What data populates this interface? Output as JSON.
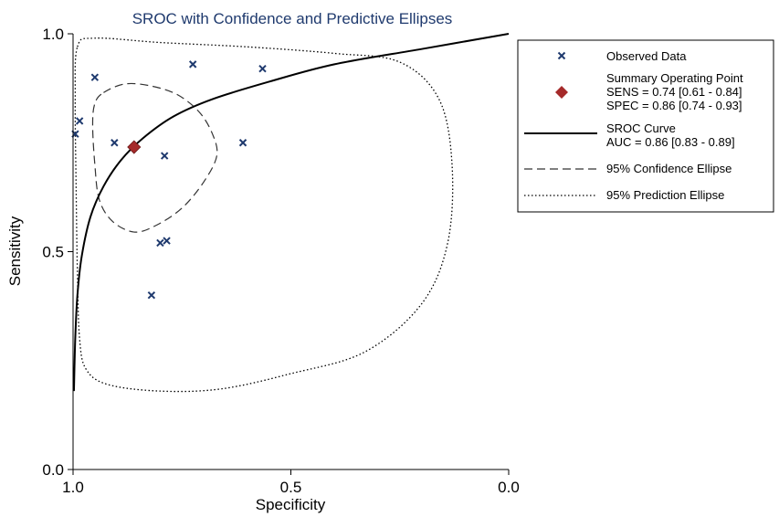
{
  "chart_data": {
    "type": "scatter",
    "title": "SROC with Confidence and Predictive Ellipses",
    "xlabel": "Specificity",
    "ylabel": "Sensitivity",
    "xlim": [
      1.0,
      0.0
    ],
    "ylim": [
      0.0,
      1.0
    ],
    "x_reversed": true,
    "x_ticks": [
      "1.0",
      "0.5",
      "0.0"
    ],
    "y_ticks": [
      "0.0",
      "0.5",
      "1.0"
    ],
    "grid": false,
    "legend_position": "right",
    "observed_data": [
      {
        "spec": 0.995,
        "sens": 0.77
      },
      {
        "spec": 0.985,
        "sens": 0.8
      },
      {
        "spec": 0.95,
        "sens": 0.9
      },
      {
        "spec": 0.725,
        "sens": 0.93
      },
      {
        "spec": 0.565,
        "sens": 0.92
      },
      {
        "spec": 0.905,
        "sens": 0.75
      },
      {
        "spec": 0.79,
        "sens": 0.72
      },
      {
        "spec": 0.61,
        "sens": 0.75
      },
      {
        "spec": 0.8,
        "sens": 0.52
      },
      {
        "spec": 0.785,
        "sens": 0.525
      },
      {
        "spec": 0.82,
        "sens": 0.4
      }
    ],
    "summary_point": {
      "spec": 0.86,
      "sens": 0.74
    },
    "sroc_curve": [
      {
        "spec": 0.998,
        "sens": 0.18
      },
      {
        "spec": 0.995,
        "sens": 0.3
      },
      {
        "spec": 0.99,
        "sens": 0.4
      },
      {
        "spec": 0.98,
        "sens": 0.49
      },
      {
        "spec": 0.96,
        "sens": 0.58
      },
      {
        "spec": 0.93,
        "sens": 0.65
      },
      {
        "spec": 0.89,
        "sens": 0.71
      },
      {
        "spec": 0.84,
        "sens": 0.76
      },
      {
        "spec": 0.77,
        "sens": 0.81
      },
      {
        "spec": 0.68,
        "sens": 0.85
      },
      {
        "spec": 0.55,
        "sens": 0.89
      },
      {
        "spec": 0.4,
        "sens": 0.93
      },
      {
        "spec": 0.2,
        "sens": 0.965
      },
      {
        "spec": 0.0,
        "sens": 1.0
      }
    ],
    "confidence_ellipse": [
      {
        "spec": 0.93,
        "sens": 0.865
      },
      {
        "spec": 0.88,
        "sens": 0.885
      },
      {
        "spec": 0.82,
        "sens": 0.88
      },
      {
        "spec": 0.76,
        "sens": 0.86
      },
      {
        "spec": 0.71,
        "sens": 0.82
      },
      {
        "spec": 0.68,
        "sens": 0.77
      },
      {
        "spec": 0.67,
        "sens": 0.72
      },
      {
        "spec": 0.7,
        "sens": 0.66
      },
      {
        "spec": 0.75,
        "sens": 0.6
      },
      {
        "spec": 0.81,
        "sens": 0.56
      },
      {
        "spec": 0.86,
        "sens": 0.545
      },
      {
        "spec": 0.91,
        "sens": 0.57
      },
      {
        "spec": 0.94,
        "sens": 0.62
      },
      {
        "spec": 0.95,
        "sens": 0.7
      },
      {
        "spec": 0.955,
        "sens": 0.79
      },
      {
        "spec": 0.95,
        "sens": 0.84
      }
    ],
    "prediction_ellipse": [
      {
        "spec": 0.99,
        "sens": 0.97
      },
      {
        "spec": 0.95,
        "sens": 0.99
      },
      {
        "spec": 0.8,
        "sens": 0.98
      },
      {
        "spec": 0.6,
        "sens": 0.97
      },
      {
        "spec": 0.4,
        "sens": 0.955
      },
      {
        "spec": 0.25,
        "sens": 0.935
      },
      {
        "spec": 0.16,
        "sens": 0.85
      },
      {
        "spec": 0.13,
        "sens": 0.7
      },
      {
        "spec": 0.14,
        "sens": 0.52
      },
      {
        "spec": 0.2,
        "sens": 0.38
      },
      {
        "spec": 0.33,
        "sens": 0.27
      },
      {
        "spec": 0.5,
        "sens": 0.22
      },
      {
        "spec": 0.66,
        "sens": 0.185
      },
      {
        "spec": 0.8,
        "sens": 0.18
      },
      {
        "spec": 0.92,
        "sens": 0.195
      },
      {
        "spec": 0.97,
        "sens": 0.23
      },
      {
        "spec": 0.985,
        "sens": 0.3
      },
      {
        "spec": 0.99,
        "sens": 0.45
      },
      {
        "spec": 0.993,
        "sens": 0.65
      },
      {
        "spec": 0.995,
        "sens": 0.85
      }
    ],
    "legend": [
      {
        "key": "observed",
        "lines": [
          "Observed Data"
        ]
      },
      {
        "key": "summary",
        "lines": [
          "Summary Operating Point",
          "SENS = 0.74 [0.61 - 0.84]",
          "SPEC = 0.86 [0.74 - 0.93]"
        ]
      },
      {
        "key": "sroc",
        "lines": [
          "SROC Curve",
          "AUC = 0.86 [0.83 - 0.89]"
        ]
      },
      {
        "key": "ci",
        "lines": [
          "95% Confidence Ellipse"
        ]
      },
      {
        "key": "pi",
        "lines": [
          "95% Prediction Ellipse"
        ]
      }
    ],
    "colors": {
      "title": "#1f3a6e",
      "observed_marker": "#1f3a6e",
      "summary_marker": "#a52a2a",
      "curve": "#000000"
    }
  }
}
